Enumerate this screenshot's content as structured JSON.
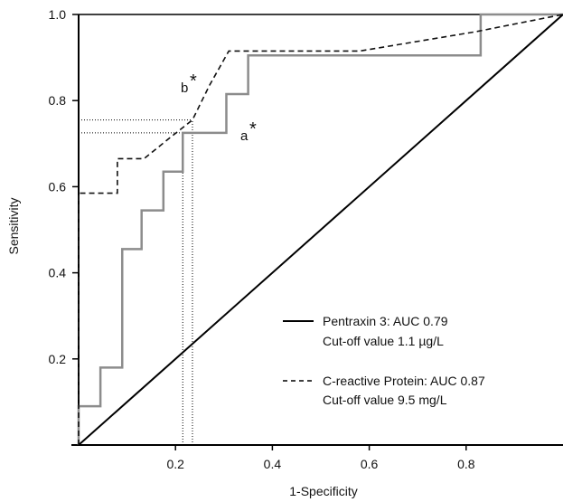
{
  "chart_data": {
    "type": "line",
    "xlabel": "1-Specificity",
    "ylabel": "Sensitivity",
    "xlim": [
      0,
      1
    ],
    "ylim": [
      0,
      1
    ],
    "x_ticks": [
      "0.2",
      "0.4",
      "0.6",
      "0.8"
    ],
    "y_ticks": [
      "0.2",
      "0.4",
      "0.6",
      "0.8",
      "1.0"
    ],
    "grid": false,
    "legend_placement": "lower-right",
    "series": [
      {
        "name": "Pentraxin 3: AUC 0.79",
        "legend_line2": "Cut-off value 1.1 µg/L",
        "style": "solid",
        "color": "#8c8c8c",
        "x": [
          0,
          0,
          0.045,
          0.045,
          0.09,
          0.09,
          0.13,
          0.13,
          0.175,
          0.175,
          0.215,
          0.215,
          0.265,
          0.305,
          0.305,
          0.35,
          0.35,
          0.83,
          0.83,
          1.0
        ],
        "y": [
          0,
          0.09,
          0.09,
          0.18,
          0.18,
          0.455,
          0.455,
          0.545,
          0.545,
          0.635,
          0.635,
          0.725,
          0.725,
          0.725,
          0.815,
          0.815,
          0.905,
          0.905,
          1.0,
          1.0
        ]
      },
      {
        "name": "C-reactive Protein: AUC 0.87",
        "legend_line2": "Cut-off value 9.5 mg/L",
        "style": "dashed",
        "color": "#111111",
        "x": [
          0,
          0,
          0.04,
          0.04,
          0.08,
          0.08,
          0.135,
          0.19,
          0.235,
          0.27,
          0.31,
          0.58,
          0.82,
          1.0
        ],
        "y": [
          0,
          0.585,
          0.585,
          0.585,
          0.585,
          0.665,
          0.665,
          0.715,
          0.755,
          0.835,
          0.915,
          0.915,
          0.96,
          1.0
        ]
      },
      {
        "name": "",
        "style": "solid",
        "color": "#000000",
        "x": [
          0,
          1
        ],
        "y": [
          0,
          1
        ]
      }
    ],
    "reference_lines": [
      {
        "x": [
          0,
          0.235
        ],
        "y": [
          0.755,
          0.755
        ]
      },
      {
        "x": [
          0,
          0.215
        ],
        "y": [
          0.725,
          0.725
        ]
      },
      {
        "x": [
          0.215,
          0.215
        ],
        "y": [
          0,
          0.725
        ]
      },
      {
        "x": [
          0.235,
          0.235
        ],
        "y": [
          0,
          0.755
        ]
      }
    ],
    "annotations": [
      {
        "text": "b",
        "star": "*",
        "x": 0.235,
        "y": 0.755
      },
      {
        "text": "a",
        "star": "*",
        "x": 0.35,
        "y": 0.725
      }
    ]
  },
  "colors": {
    "pentraxin_line": "#8c8c8c",
    "crp_line": "#111111",
    "axis": "#000000"
  }
}
